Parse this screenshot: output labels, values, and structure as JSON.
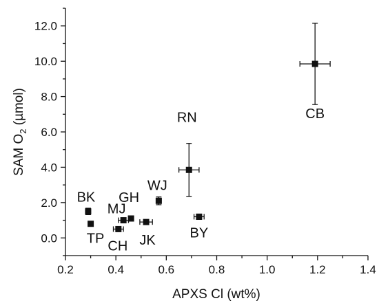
{
  "chart_data": {
    "type": "scatter",
    "title": "",
    "xlabel": "APXS Cl (wt%)",
    "ylabel_main": "SAM O",
    "ylabel_sub": "2",
    "ylabel_unit": " (µmol)",
    "xlim": [
      0.2,
      1.4
    ],
    "ylim": [
      -1.0,
      13.0
    ],
    "xticks": [
      0.2,
      0.4,
      0.6,
      0.8,
      1.0,
      1.2,
      1.4
    ],
    "xtick_labels": [
      "0.2",
      "0.4",
      "0.6",
      "0.8",
      "1.0",
      "1.2",
      "1.4"
    ],
    "yticks": [
      0.0,
      2.0,
      4.0,
      6.0,
      8.0,
      10.0,
      12.0
    ],
    "ytick_labels": [
      "0.0",
      "2.0",
      "4.0",
      "6.0",
      "8.0",
      "10.0",
      "12.0"
    ],
    "grid": false,
    "legend": false,
    "points": [
      {
        "label": "BK",
        "x": 0.29,
        "y": 1.5,
        "xerr": 0.0,
        "yerr": 0.18
      },
      {
        "label": "TP",
        "x": 0.3,
        "y": 0.8,
        "xerr": 0.0,
        "yerr": 0.08
      },
      {
        "label": "CH",
        "x": 0.41,
        "y": 0.5,
        "xerr": 0.02,
        "yerr": 0.12
      },
      {
        "label": "MJ",
        "x": 0.43,
        "y": 1.0,
        "xerr": 0.02,
        "yerr": 0.12
      },
      {
        "label": "GH",
        "x": 0.46,
        "y": 1.1,
        "xerr": 0.0,
        "yerr": 0.1
      },
      {
        "label": "JK",
        "x": 0.52,
        "y": 0.9,
        "xerr": 0.025,
        "yerr": 0.1
      },
      {
        "label": "WJ",
        "x": 0.57,
        "y": 2.1,
        "xerr": 0.01,
        "yerr": 0.22
      },
      {
        "label": "RN",
        "x": 0.69,
        "y": 3.85,
        "xerr": 0.04,
        "yerr": 1.5
      },
      {
        "label": "BY",
        "x": 0.73,
        "y": 1.2,
        "xerr": 0.02,
        "yerr": 0.15
      },
      {
        "label": "CB",
        "x": 1.19,
        "y": 9.85,
        "xerr": 0.06,
        "yerr": 2.3
      }
    ]
  }
}
